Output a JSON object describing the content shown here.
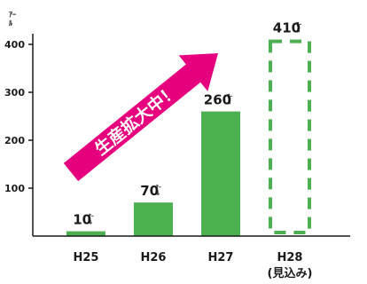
{
  "chart_data": {
    "type": "bar",
    "unit": "ｱｰﾙ",
    "categories": [
      "H25",
      "H26",
      "H27",
      "H28"
    ],
    "category_notes": [
      "",
      "",
      "",
      "(見込み)"
    ],
    "values": [
      10,
      70,
      260,
      410
    ],
    "value_labels": [
      "10",
      "70",
      "260",
      "410"
    ],
    "projected": [
      false,
      false,
      false,
      true
    ],
    "y_ticks": [
      100,
      200,
      300,
      400
    ],
    "ylim": [
      0,
      450
    ],
    "grid": false,
    "colors": {
      "bar": "#4caf50",
      "arrow": "#e6007e",
      "arrow_text": "#ffffff"
    },
    "annotation": "生産拡大中！"
  }
}
